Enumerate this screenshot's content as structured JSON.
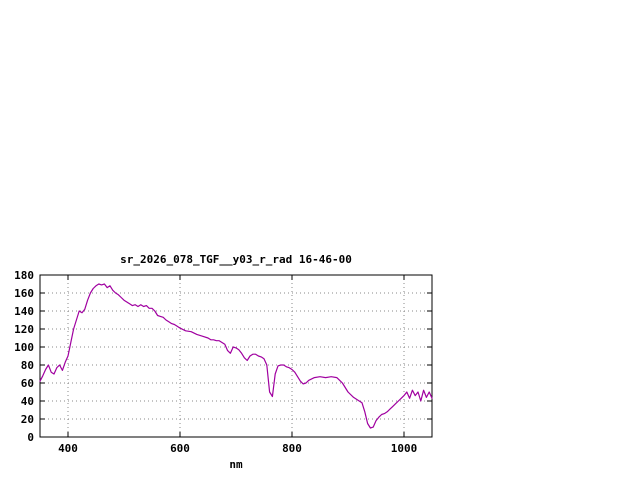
{
  "figure": {
    "background": "#ffffff",
    "frame_color": "#000000",
    "grid_color": "#8a8a8a",
    "text_color": "#000000"
  },
  "chart_data": {
    "type": "line",
    "title": "sr_2026_078_TGF__y03_r_rad 16-46-00",
    "xlabel": "nm",
    "ylabel": "",
    "xlim": [
      350,
      1050
    ],
    "ylim": [
      0,
      180
    ],
    "xticks": [
      400,
      600,
      800,
      1000
    ],
    "yticks": [
      0,
      20,
      40,
      60,
      80,
      100,
      120,
      140,
      160,
      180
    ],
    "grid": true,
    "legend": "none",
    "line_color": "#a000a0",
    "series": [
      {
        "x": [
          350,
          355,
          360,
          365,
          370,
          375,
          380,
          385,
          390,
          395,
          400,
          405,
          410,
          415,
          420,
          425,
          430,
          435,
          440,
          445,
          450,
          455,
          460,
          465,
          470,
          475,
          480,
          485,
          490,
          495,
          500,
          505,
          510,
          515,
          520,
          525,
          530,
          535,
          540,
          545,
          550,
          555,
          560,
          565,
          570,
          575,
          580,
          585,
          590,
          595,
          600,
          610,
          620,
          630,
          640,
          650,
          655,
          660,
          665,
          670,
          675,
          680,
          685,
          690,
          695,
          700,
          705,
          710,
          715,
          720,
          725,
          730,
          735,
          740,
          745,
          750,
          755,
          760,
          765,
          770,
          775,
          780,
          785,
          790,
          795,
          800,
          805,
          810,
          815,
          820,
          825,
          830,
          840,
          850,
          860,
          870,
          880,
          890,
          900,
          910,
          920,
          925,
          930,
          935,
          940,
          945,
          950,
          955,
          960,
          965,
          970,
          975,
          980,
          985,
          990,
          995,
          1000,
          1005,
          1010,
          1015,
          1020,
          1025,
          1030,
          1035,
          1040,
          1045,
          1050
        ],
        "y": [
          62,
          68,
          75,
          80,
          72,
          70,
          77,
          80,
          74,
          83,
          90,
          105,
          120,
          130,
          140,
          138,
          142,
          152,
          160,
          165,
          168,
          170,
          169,
          170,
          166,
          168,
          163,
          160,
          158,
          155,
          152,
          150,
          148,
          146,
          147,
          145,
          147,
          145,
          146,
          143,
          143,
          140,
          135,
          134,
          133,
          130,
          128,
          126,
          125,
          123,
          121,
          118,
          117,
          114,
          112,
          110,
          108,
          108,
          107,
          107,
          105,
          103,
          96,
          93,
          100,
          99,
          97,
          93,
          88,
          85,
          90,
          92,
          92,
          90,
          89,
          87,
          80,
          50,
          45,
          70,
          79,
          80,
          80,
          78,
          77,
          75,
          72,
          67,
          62,
          59,
          60,
          63,
          66,
          67,
          66,
          67,
          66,
          60,
          50,
          44,
          40,
          38,
          28,
          15,
          10,
          11,
          18,
          22,
          25,
          26,
          28,
          31,
          34,
          37,
          40,
          43,
          46,
          50,
          43,
          52,
          46,
          50,
          40,
          52,
          44,
          50,
          43
        ]
      }
    ]
  }
}
